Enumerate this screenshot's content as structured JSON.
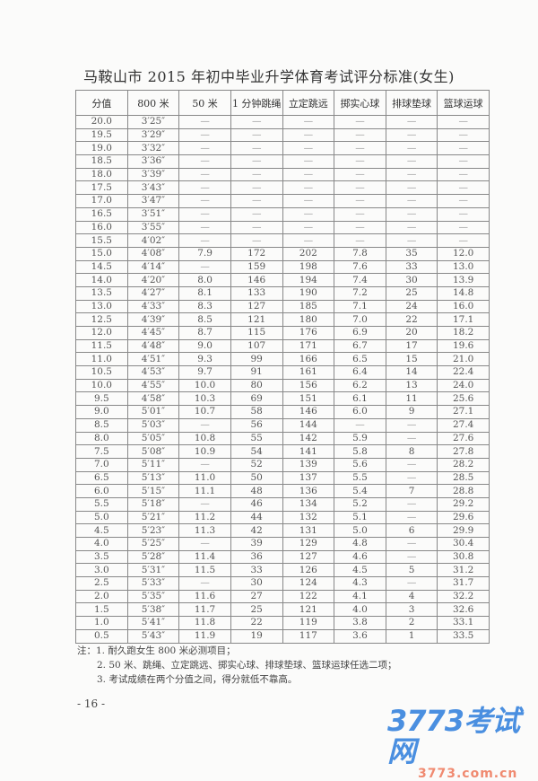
{
  "title": "马鞍山市 2015 年初中毕业升学体育考试评分标准(女生)",
  "table": {
    "headers": [
      "分值",
      "800 米",
      "50 米",
      "1 分钟跳绳",
      "立定跳远",
      "掷实心球",
      "排球垫球",
      "篮球运球"
    ],
    "rows": [
      [
        "20.0",
        "3′25″",
        "—",
        "—",
        "—",
        "—",
        "—",
        "—"
      ],
      [
        "19.5",
        "3′29″",
        "—",
        "—",
        "—",
        "—",
        "—",
        "—"
      ],
      [
        "19.0",
        "3′32″",
        "—",
        "—",
        "—",
        "—",
        "—",
        "—"
      ],
      [
        "18.5",
        "3′36″",
        "—",
        "—",
        "—",
        "—",
        "—",
        "—"
      ],
      [
        "18.0",
        "3′39″",
        "—",
        "—",
        "—",
        "—",
        "—",
        "—"
      ],
      [
        "17.5",
        "3′43″",
        "—",
        "—",
        "—",
        "—",
        "—",
        "—"
      ],
      [
        "17.0",
        "3′47″",
        "—",
        "—",
        "—",
        "—",
        "—",
        "—"
      ],
      [
        "16.5",
        "3′51″",
        "—",
        "—",
        "—",
        "—",
        "—",
        "—"
      ],
      [
        "16.0",
        "3′55″",
        "—",
        "—",
        "—",
        "—",
        "—",
        "—"
      ],
      [
        "15.5",
        "4′02″",
        "—",
        "—",
        "—",
        "—",
        "—",
        "—"
      ],
      [
        "15.0",
        "4′08″",
        "7.9",
        "172",
        "202",
        "7.8",
        "35",
        "12.0"
      ],
      [
        "14.5",
        "4′14″",
        "—",
        "159",
        "198",
        "7.6",
        "33",
        "13.0"
      ],
      [
        "14.0",
        "4′20″",
        "8.0",
        "146",
        "194",
        "7.4",
        "30",
        "13.9"
      ],
      [
        "13.5",
        "4′27″",
        "8.1",
        "133",
        "190",
        "7.2",
        "25",
        "14.8"
      ],
      [
        "13.0",
        "4′33″",
        "8.3",
        "127",
        "185",
        "7.1",
        "24",
        "16.0"
      ],
      [
        "12.5",
        "4′39″",
        "8.5",
        "121",
        "180",
        "7.0",
        "22",
        "17.1"
      ],
      [
        "12.0",
        "4′45″",
        "8.7",
        "115",
        "176",
        "6.9",
        "20",
        "18.2"
      ],
      [
        "11.5",
        "4′48″",
        "9.0",
        "107",
        "171",
        "6.7",
        "17",
        "19.6"
      ],
      [
        "11.0",
        "4′51″",
        "9.3",
        "99",
        "166",
        "6.5",
        "15",
        "21.0"
      ],
      [
        "10.5",
        "4′53″",
        "9.7",
        "91",
        "161",
        "6.4",
        "14",
        "22.4"
      ],
      [
        "10.0",
        "4′55″",
        "10.0",
        "80",
        "156",
        "6.2",
        "13",
        "24.0"
      ],
      [
        "9.5",
        "4′58″",
        "10.3",
        "69",
        "151",
        "6.1",
        "11",
        "25.6"
      ],
      [
        "9.0",
        "5′01″",
        "10.7",
        "58",
        "146",
        "6.0",
        "9",
        "27.1"
      ],
      [
        "8.5",
        "5′03″",
        "—",
        "56",
        "144",
        "—",
        "—",
        "27.4"
      ],
      [
        "8.0",
        "5′05″",
        "10.8",
        "55",
        "142",
        "5.9",
        "—",
        "27.6"
      ],
      [
        "7.5",
        "5′08″",
        "10.9",
        "54",
        "141",
        "5.8",
        "8",
        "27.8"
      ],
      [
        "7.0",
        "5′11″",
        "—",
        "52",
        "139",
        "5.6",
        "—",
        "28.2"
      ],
      [
        "6.5",
        "5′13″",
        "11.0",
        "50",
        "137",
        "5.5",
        "—",
        "28.5"
      ],
      [
        "6.0",
        "5′15″",
        "11.1",
        "48",
        "136",
        "5.4",
        "7",
        "28.8"
      ],
      [
        "5.5",
        "5′18″",
        "—",
        "46",
        "134",
        "5.2",
        "—",
        "29.2"
      ],
      [
        "5.0",
        "5′21″",
        "11.2",
        "44",
        "132",
        "5.1",
        "—",
        "29.6"
      ],
      [
        "4.5",
        "5′23″",
        "11.3",
        "42",
        "131",
        "5.0",
        "6",
        "29.9"
      ],
      [
        "4.0",
        "5′25″",
        "—",
        "39",
        "129",
        "4.8",
        "—",
        "30.4"
      ],
      [
        "3.5",
        "5′28″",
        "11.4",
        "36",
        "127",
        "4.6",
        "—",
        "30.8"
      ],
      [
        "3.0",
        "5′31″",
        "11.5",
        "33",
        "126",
        "4.5",
        "5",
        "31.2"
      ],
      [
        "2.5",
        "5′33″",
        "—",
        "30",
        "124",
        "4.3",
        "—",
        "31.7"
      ],
      [
        "2.0",
        "5′35″",
        "11.6",
        "27",
        "122",
        "4.1",
        "4",
        "32.2"
      ],
      [
        "1.5",
        "5′38″",
        "11.7",
        "25",
        "121",
        "4.0",
        "3",
        "32.6"
      ],
      [
        "1.0",
        "5′41″",
        "11.8",
        "22",
        "119",
        "3.8",
        "2",
        "33.1"
      ],
      [
        "0.5",
        "5′43″",
        "11.9",
        "19",
        "117",
        "3.6",
        "1",
        "33.5"
      ]
    ]
  },
  "notes": {
    "note1": "注：1. 耐久跑女生 800 米必测项目；",
    "note2": "2. 50 米、跳绳、立定跳远、掷实心球、排球垫球、篮球运球任选二项；",
    "note3": "3. 考试成绩在两个分值之间，得分就低不靠高。"
  },
  "page_number": "- 16 -",
  "watermark": {
    "main": "3773考试网",
    "sub": "3773.com.cn"
  }
}
